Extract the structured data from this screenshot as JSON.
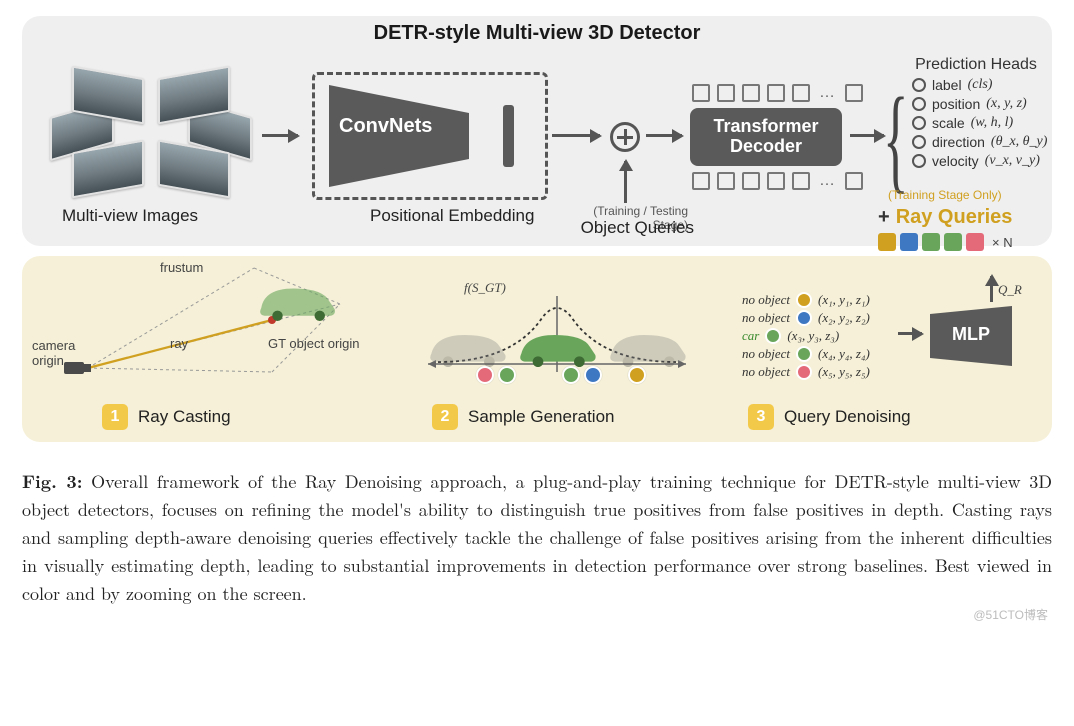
{
  "figure": {
    "title": "DETR-style Multi-view 3D Detector",
    "watermark": "@51CTO博客",
    "colors": {
      "panel_top_bg": "#efefef",
      "panel_bottom_bg": "#f5f0d7",
      "block_fill": "#5a5a5a",
      "arrow": "#555555",
      "accent_yellow": "#f3c94a",
      "ray_query_text": "#d0a020",
      "car_green": "#69a65c",
      "car_gray": "#a9a9a9"
    },
    "top": {
      "multi_view_label": "Multi-view Images",
      "convnets_label": "ConvNets",
      "pos_embed_label": "Positional Embedding",
      "obj_queries_row1": "(Training / Testing Stage)",
      "obj_queries_row2": "Object Queries",
      "decoder_line1": "Transformer",
      "decoder_line2": "Decoder",
      "pred_heads_title": "Prediction Heads",
      "pred_heads": [
        {
          "label": "label",
          "math": "(cls)"
        },
        {
          "label": "position",
          "math": "(x, y, z)"
        },
        {
          "label": "scale",
          "math": "(w, h, l)"
        },
        {
          "label": "direction",
          "math": "(θ_x, θ_y)"
        },
        {
          "label": "velocity",
          "math": "(v_x, v_y)"
        }
      ],
      "ray_queries": {
        "overline": "(Training Stage Only)",
        "title": "Ray Queries",
        "plus": "+",
        "xN": "× N",
        "swatches": [
          "#d0a020",
          "#3e78c2",
          "#69a65c",
          "#69a65c",
          "#e46a7a"
        ]
      }
    },
    "bottom": {
      "sec1_label": "Ray Casting",
      "sec2_label": "Sample Generation",
      "sec3_label": "Query Denoising",
      "frustum": "frustum",
      "ray": "ray",
      "camera_origin": "camera origin",
      "gt_origin": "GT object origin",
      "f_sgt": "f(S_GT)",
      "qr_label": "Q_R",
      "mlp_label": "MLP",
      "noobj": [
        {
          "text": "no object",
          "color": "#d0a020",
          "coord": "(x₁, y₁, z₁)"
        },
        {
          "text": "no object",
          "color": "#3e78c2",
          "coord": "(x₂, y₂, z₂)"
        },
        {
          "text": "car",
          "color": "#69a65c",
          "coord": "(x₃, y₃, z₃)",
          "highlight": true
        },
        {
          "text": "no object",
          "color": "#69a65c",
          "coord": "(x₄, y₄, z₄)"
        },
        {
          "text": "no object",
          "color": "#e46a7a",
          "coord": "(x₅, y₅, z₅)"
        }
      ],
      "gauss": {
        "dot_colors_left": [
          "#e46a7a",
          "#69a65c"
        ],
        "dot_colors_mid": [
          "#69a65c",
          "#3e78c2"
        ],
        "dot_colors_right": [
          "#d0a020"
        ],
        "car_fade_opacities": [
          0.35,
          1.0,
          0.35
        ]
      }
    },
    "caption": {
      "lead": "Fig. 3:",
      "body": " Overall framework of the Ray Denoising approach, a plug-and-play training technique for DETR-style multi-view 3D object detectors, focuses on refining the model's ability to distinguish true positives from false positives in depth. Casting rays and sampling depth-aware denoising queries effectively tackle the challenge of false positives arising from the inherent difficulties in visually estimating depth, leading to substantial improvements in detection performance over strong baselines. Best viewed in color and by zooming on the screen."
    }
  }
}
